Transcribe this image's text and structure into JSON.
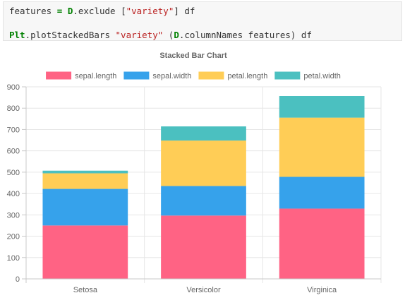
{
  "code": {
    "line1": {
      "var": "features",
      "op": "=",
      "module": "D",
      "call": ".exclude [",
      "arg": "\"variety\"",
      "rest": "] df"
    },
    "line2": {
      "module": "Plt",
      "call": ".plotStackedBars ",
      "arg": "\"variety\"",
      "mid": " (",
      "module2": "D",
      "rest": ".columnNames features) df"
    }
  },
  "colors": {
    "sepal_length": "#ff6384",
    "sepal_width": "#36a2eb",
    "petal_length": "#ffcd56",
    "petal_width": "#4bc0c0"
  },
  "chart_data": {
    "type": "bar",
    "stacked": true,
    "title": "Stacked Bar Chart",
    "categories": [
      "Setosa",
      "Versicolor",
      "Virginica"
    ],
    "series": [
      {
        "name": "sepal.length",
        "values": [
          250.3,
          296.8,
          329.4
        ]
      },
      {
        "name": "sepal.width",
        "values": [
          171.4,
          138.5,
          148.7
        ]
      },
      {
        "name": "petal.length",
        "values": [
          73.1,
          213.0,
          277.6
        ]
      },
      {
        "name": "petal.width",
        "values": [
          12.3,
          66.3,
          101.3
        ]
      }
    ],
    "ylim": [
      0,
      900
    ],
    "yticks": [
      0,
      100,
      200,
      300,
      400,
      500,
      600,
      700,
      800,
      900
    ],
    "legend_position": "top",
    "grid": true
  }
}
